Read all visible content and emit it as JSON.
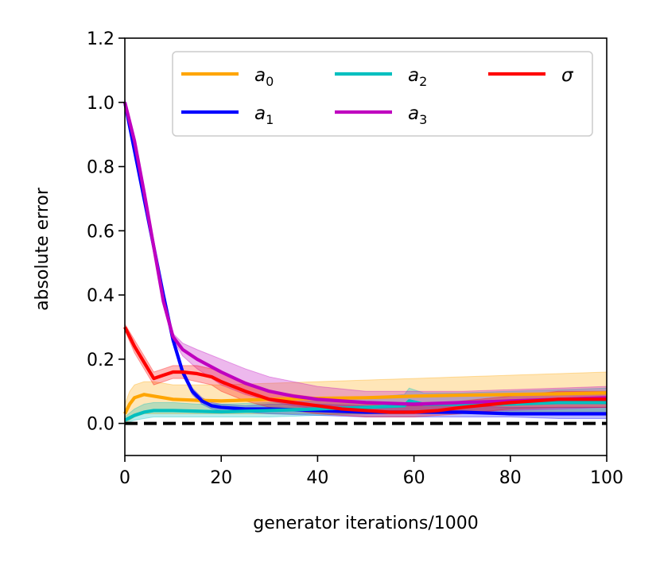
{
  "chart_data": {
    "type": "line",
    "title": "",
    "xlabel": "generator iterations/1000",
    "ylabel": "absolute error",
    "xlim": [
      0,
      100
    ],
    "ylim": [
      -0.1,
      1.2
    ],
    "xticks": [
      "0",
      "20",
      "40",
      "60",
      "80",
      "100"
    ],
    "yticks": [
      "0.0",
      "0.2",
      "0.4",
      "0.6",
      "0.8",
      "1.0",
      "1.2"
    ],
    "grid": false,
    "legend_position": "top-right",
    "reference_line": {
      "y": 0.0,
      "style": "dashed",
      "color": "#000000"
    },
    "series": [
      {
        "name": "a0",
        "label_base": "a",
        "label_sub": "0",
        "color": "#FFA500",
        "x": [
          0,
          1,
          2,
          4,
          6,
          8,
          10,
          15,
          20,
          30,
          40,
          50,
          60,
          70,
          80,
          90,
          100
        ],
        "y": [
          0.03,
          0.06,
          0.08,
          0.09,
          0.085,
          0.08,
          0.075,
          0.072,
          0.07,
          0.075,
          0.078,
          0.08,
          0.085,
          0.088,
          0.09,
          0.092,
          0.095
        ],
        "band_lo": [
          0.0,
          0.01,
          0.02,
          0.03,
          0.03,
          0.03,
          0.03,
          0.03,
          0.03,
          0.03,
          0.03,
          0.03,
          0.035,
          0.035,
          0.035,
          0.035,
          0.035
        ],
        "band_hi": [
          0.06,
          0.1,
          0.12,
          0.13,
          0.13,
          0.125,
          0.12,
          0.12,
          0.12,
          0.125,
          0.13,
          0.135,
          0.14,
          0.145,
          0.15,
          0.155,
          0.16
        ]
      },
      {
        "name": "a1",
        "label_base": "a",
        "label_sub": "1",
        "color": "#0000FF",
        "x": [
          0,
          2,
          4,
          6,
          8,
          10,
          12,
          14,
          16,
          18,
          20,
          25,
          30,
          40,
          50,
          60,
          70,
          80,
          90,
          100
        ],
        "y": [
          1.0,
          0.85,
          0.7,
          0.55,
          0.4,
          0.26,
          0.16,
          0.1,
          0.07,
          0.055,
          0.05,
          0.045,
          0.045,
          0.04,
          0.035,
          0.035,
          0.035,
          0.03,
          0.03,
          0.03
        ],
        "band_lo": [
          0.99,
          0.84,
          0.69,
          0.54,
          0.39,
          0.25,
          0.15,
          0.09,
          0.06,
          0.045,
          0.04,
          0.035,
          0.03,
          0.025,
          0.02,
          0.02,
          0.02,
          0.02,
          0.015,
          0.015
        ],
        "band_hi": [
          1.01,
          0.86,
          0.71,
          0.56,
          0.41,
          0.27,
          0.17,
          0.11,
          0.08,
          0.065,
          0.06,
          0.055,
          0.06,
          0.06,
          0.055,
          0.055,
          0.055,
          0.05,
          0.05,
          0.05
        ]
      },
      {
        "name": "a2",
        "label_base": "a",
        "label_sub": "2",
        "color": "#00BFBF",
        "x": [
          0,
          2,
          4,
          6,
          8,
          10,
          15,
          20,
          30,
          40,
          50,
          58,
          59,
          62,
          70,
          80,
          90,
          100
        ],
        "y": [
          0.01,
          0.025,
          0.035,
          0.04,
          0.04,
          0.04,
          0.038,
          0.036,
          0.04,
          0.045,
          0.05,
          0.055,
          0.07,
          0.06,
          0.06,
          0.06,
          0.065,
          0.065
        ],
        "band_lo": [
          0.0,
          0.01,
          0.015,
          0.02,
          0.02,
          0.02,
          0.02,
          0.02,
          0.02,
          0.025,
          0.03,
          0.03,
          0.035,
          0.03,
          0.03,
          0.03,
          0.03,
          0.03
        ],
        "band_hi": [
          0.02,
          0.045,
          0.06,
          0.065,
          0.065,
          0.065,
          0.06,
          0.06,
          0.065,
          0.07,
          0.08,
          0.09,
          0.11,
          0.095,
          0.095,
          0.1,
          0.105,
          0.11
        ]
      },
      {
        "name": "a3",
        "label_base": "a",
        "label_sub": "3",
        "color": "#BF00BF",
        "x": [
          0,
          2,
          4,
          6,
          8,
          10,
          12,
          15,
          20,
          25,
          30,
          35,
          40,
          50,
          60,
          70,
          80,
          90,
          100
        ],
        "y": [
          1.0,
          0.88,
          0.72,
          0.55,
          0.38,
          0.27,
          0.23,
          0.2,
          0.16,
          0.125,
          0.1,
          0.085,
          0.075,
          0.065,
          0.06,
          0.065,
          0.07,
          0.075,
          0.08
        ],
        "band_lo": [
          0.99,
          0.87,
          0.71,
          0.54,
          0.37,
          0.26,
          0.21,
          0.17,
          0.12,
          0.09,
          0.07,
          0.055,
          0.045,
          0.04,
          0.035,
          0.035,
          0.04,
          0.045,
          0.05
        ],
        "band_hi": [
          1.01,
          0.89,
          0.73,
          0.56,
          0.39,
          0.28,
          0.25,
          0.23,
          0.2,
          0.17,
          0.145,
          0.13,
          0.115,
          0.1,
          0.1,
          0.1,
          0.105,
          0.11,
          0.115
        ]
      },
      {
        "name": "sigma",
        "label_base": "σ",
        "label_sub": "",
        "color": "#FF0000",
        "x": [
          0,
          2,
          4,
          6,
          8,
          10,
          12,
          15,
          18,
          20,
          25,
          30,
          35,
          40,
          45,
          50,
          55,
          60,
          65,
          70,
          80,
          90,
          100
        ],
        "y": [
          0.3,
          0.24,
          0.19,
          0.14,
          0.15,
          0.16,
          0.16,
          0.155,
          0.145,
          0.13,
          0.1,
          0.075,
          0.065,
          0.055,
          0.045,
          0.04,
          0.035,
          0.035,
          0.04,
          0.05,
          0.065,
          0.075,
          0.075
        ],
        "band_lo": [
          0.29,
          0.22,
          0.17,
          0.12,
          0.13,
          0.14,
          0.14,
          0.13,
          0.12,
          0.1,
          0.07,
          0.05,
          0.04,
          0.03,
          0.025,
          0.02,
          0.02,
          0.02,
          0.025,
          0.03,
          0.045,
          0.05,
          0.05
        ],
        "band_hi": [
          0.31,
          0.26,
          0.21,
          0.16,
          0.17,
          0.18,
          0.18,
          0.18,
          0.17,
          0.16,
          0.13,
          0.1,
          0.09,
          0.08,
          0.07,
          0.06,
          0.055,
          0.055,
          0.06,
          0.07,
          0.085,
          0.1,
          0.1
        ]
      }
    ]
  }
}
